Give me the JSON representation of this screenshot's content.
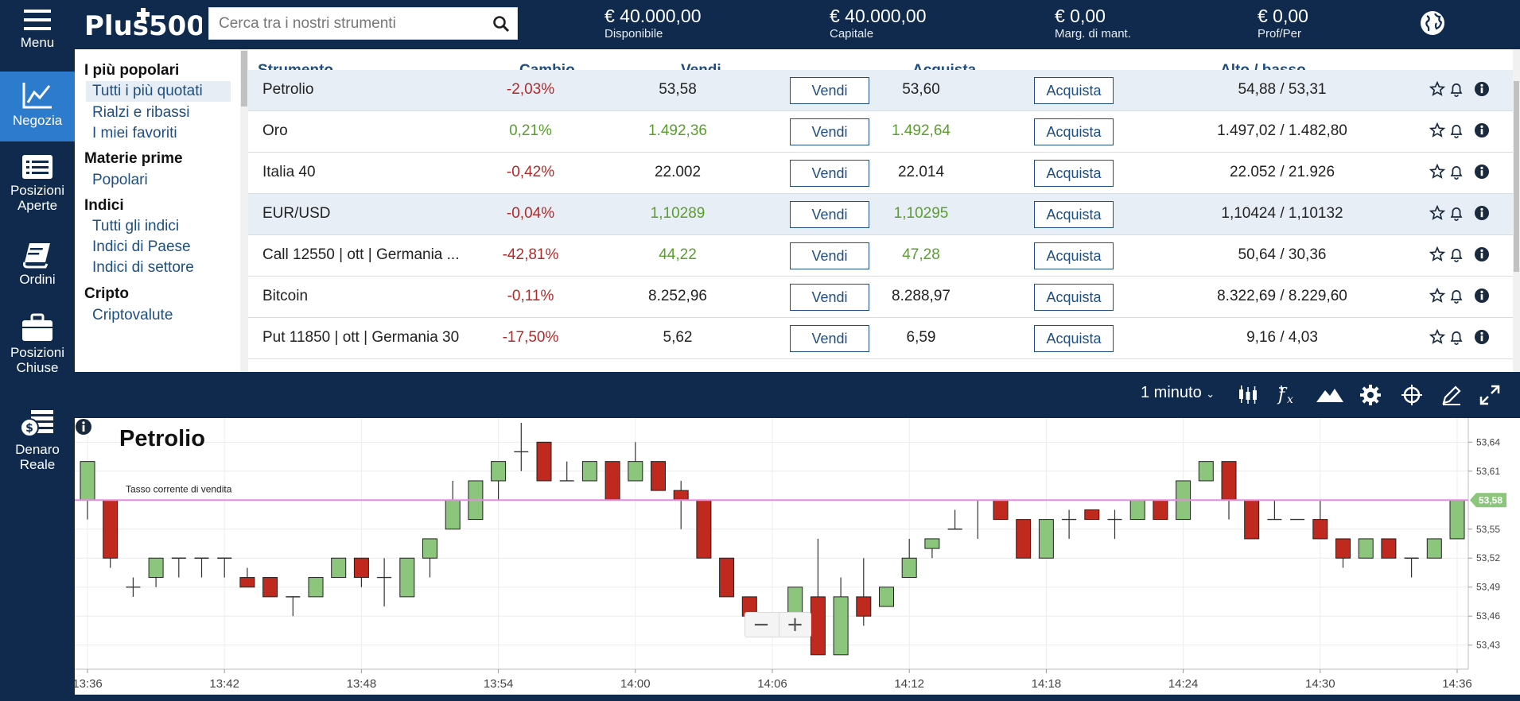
{
  "nav": [
    {
      "id": "menu",
      "label": "Menu",
      "icon": "hamburger-icon"
    },
    {
      "id": "trade",
      "label": "Negozia",
      "icon": "trade-chart-icon",
      "active": true
    },
    {
      "id": "open_positions",
      "label": "Posizioni Aperte",
      "icon": "positions-list-icon"
    },
    {
      "id": "orders",
      "label": "Ordini",
      "icon": "orders-book-icon"
    },
    {
      "id": "closed_positions",
      "label": "Posizioni Chiuse",
      "icon": "briefcase-icon"
    },
    {
      "id": "real_money",
      "label": "Denaro Reale",
      "icon": "money-stack-icon"
    }
  ],
  "header": {
    "logo_text": "Plus500",
    "search_placeholder": "Cerca tra i nostri strumenti",
    "stats": [
      {
        "value": "€ 40.000,00",
        "label": "Disponibile"
      },
      {
        "value": "€ 40.000,00",
        "label": "Capitale"
      },
      {
        "value": "€ 0,00",
        "label": "Marg. di mant."
      },
      {
        "value": "€ 0,00",
        "label": "Prof/Per"
      }
    ]
  },
  "categories": {
    "sections": [
      {
        "title": "I più popolari",
        "items": [
          "Tutti i più quotati",
          "Rialzi e ribassi",
          "I miei favoriti"
        ]
      },
      {
        "title": "Materie prime",
        "items": [
          "Popolari"
        ]
      },
      {
        "title": "Indici",
        "items": [
          "Tutti gli indici",
          "Indici di Paese",
          "Indici di settore"
        ]
      },
      {
        "title": "Cripto",
        "items": [
          "Criptovalute"
        ]
      }
    ],
    "selected": "Tutti i più quotati"
  },
  "table": {
    "headers": {
      "instrument": "Strumento",
      "change": "Cambio",
      "sell": "Vendi",
      "buy": "Acquista",
      "high_low": "Alto / basso"
    },
    "sell_button": "Vendi",
    "buy_button": "Acquista",
    "rows": [
      {
        "name": "Petrolio",
        "change": "-2,03%",
        "sell": "53,58",
        "buy": "53,60",
        "high_low": "54,88 / 53,31",
        "dir": "neg",
        "price_dir": "",
        "shaded": true
      },
      {
        "name": "Oro",
        "change": "0,21%",
        "sell": "1.492,36",
        "buy": "1.492,64",
        "high_low": "1.497,02 / 1.482,80",
        "dir": "pos",
        "price_dir": "pos",
        "shaded": false
      },
      {
        "name": "Italia 40",
        "change": "-0,42%",
        "sell": "22.002",
        "buy": "22.014",
        "high_low": "22.052 / 21.926",
        "dir": "neg",
        "price_dir": "",
        "shaded": false
      },
      {
        "name": "EUR/USD",
        "change": "-0,04%",
        "sell": "1,10289",
        "buy": "1,10295",
        "high_low": "1,10424 / 1,10132",
        "dir": "neg",
        "price_dir": "pos",
        "shaded": true
      },
      {
        "name": "Call 12550 | ott | Germania ...",
        "change": "-42,81%",
        "sell": "44,22",
        "buy": "47,28",
        "high_low": "50,64 / 30,36",
        "dir": "neg",
        "price_dir": "pos",
        "shaded": false
      },
      {
        "name": "Bitcoin",
        "change": "-0,11%",
        "sell": "8.252,96",
        "buy": "8.288,97",
        "high_low": "8.322,69 / 8.229,60",
        "dir": "neg",
        "price_dir": "",
        "shaded": false
      },
      {
        "name": "Put 11850 | ott | Germania 30",
        "change": "-17,50%",
        "sell": "5,62",
        "buy": "6,59",
        "high_low": "9,16 / 4,03",
        "dir": "neg",
        "price_dir": "",
        "shaded": false
      }
    ]
  },
  "chart_toolbar": {
    "interval": "1 minuto",
    "tools": [
      "candles-icon",
      "indicator-fx-icon",
      "area-chart-icon",
      "settings-gear-icon",
      "crosshair-icon",
      "pencil-icon",
      "fullscreen-icon"
    ]
  },
  "colors": {
    "navy": "#0f2a4d",
    "active_blue": "#2d7bcc",
    "up": "#8cc57c",
    "down": "#c0291e",
    "price_line": "#e58be0",
    "price_tag": "#8cc57c"
  },
  "chart_data": {
    "type": "candlestick",
    "title": "Petrolio",
    "annotation": "Tasso corrente di vendita",
    "current_price": 53.58,
    "current_price_label": "53,58",
    "ylim": [
      53.41,
      53.66
    ],
    "y_ticks": [
      53.43,
      53.46,
      53.49,
      53.52,
      53.55,
      53.61,
      53.64
    ],
    "y_tick_labels": [
      "53,43",
      "53,46",
      "53,49",
      "53,52",
      "53,55",
      "53,61",
      "53,64"
    ],
    "x_ticks": [
      "13:36",
      "13:42",
      "13:48",
      "13:54",
      "14:00",
      "14:06",
      "14:12",
      "14:18",
      "14:24",
      "14:30",
      "14:36"
    ],
    "x_tick_index": [
      0,
      6,
      12,
      18,
      24,
      30,
      36,
      42,
      48,
      54,
      60
    ],
    "candles": [
      {
        "o": 53.58,
        "h": 53.62,
        "l": 53.56,
        "c": 53.62
      },
      {
        "o": 53.58,
        "h": 53.58,
        "l": 53.51,
        "c": 53.52
      },
      {
        "o": 53.49,
        "h": 53.5,
        "l": 53.48,
        "c": 53.49
      },
      {
        "o": 53.5,
        "h": 53.52,
        "l": 53.49,
        "c": 53.52
      },
      {
        "o": 53.52,
        "h": 53.52,
        "l": 53.5,
        "c": 53.52
      },
      {
        "o": 53.52,
        "h": 53.52,
        "l": 53.5,
        "c": 53.52
      },
      {
        "o": 53.52,
        "h": 53.52,
        "l": 53.5,
        "c": 53.52
      },
      {
        "o": 53.5,
        "h": 53.51,
        "l": 53.49,
        "c": 53.49
      },
      {
        "o": 53.5,
        "h": 53.5,
        "l": 53.48,
        "c": 53.48
      },
      {
        "o": 53.48,
        "h": 53.48,
        "l": 53.46,
        "c": 53.48
      },
      {
        "o": 53.48,
        "h": 53.5,
        "l": 53.48,
        "c": 53.5
      },
      {
        "o": 53.5,
        "h": 53.52,
        "l": 53.5,
        "c": 53.52
      },
      {
        "o": 53.52,
        "h": 53.52,
        "l": 53.49,
        "c": 53.5
      },
      {
        "o": 53.5,
        "h": 53.52,
        "l": 53.47,
        "c": 53.5
      },
      {
        "o": 53.48,
        "h": 53.52,
        "l": 53.48,
        "c": 53.52
      },
      {
        "o": 53.52,
        "h": 53.54,
        "l": 53.5,
        "c": 53.54
      },
      {
        "o": 53.55,
        "h": 53.6,
        "l": 53.55,
        "c": 53.58
      },
      {
        "o": 53.56,
        "h": 53.6,
        "l": 53.56,
        "c": 53.6
      },
      {
        "o": 53.6,
        "h": 53.62,
        "l": 53.58,
        "c": 53.62
      },
      {
        "o": 53.63,
        "h": 53.66,
        "l": 53.61,
        "c": 53.63
      },
      {
        "o": 53.64,
        "h": 53.64,
        "l": 53.6,
        "c": 53.6
      },
      {
        "o": 53.6,
        "h": 53.62,
        "l": 53.6,
        "c": 53.6
      },
      {
        "o": 53.6,
        "h": 53.62,
        "l": 53.6,
        "c": 53.62
      },
      {
        "o": 53.62,
        "h": 53.62,
        "l": 53.58,
        "c": 53.58
      },
      {
        "o": 53.6,
        "h": 53.64,
        "l": 53.6,
        "c": 53.62
      },
      {
        "o": 53.62,
        "h": 53.62,
        "l": 53.59,
        "c": 53.59
      },
      {
        "o": 53.59,
        "h": 53.6,
        "l": 53.55,
        "c": 53.58
      },
      {
        "o": 53.58,
        "h": 53.58,
        "l": 53.52,
        "c": 53.52
      },
      {
        "o": 53.52,
        "h": 53.52,
        "l": 53.48,
        "c": 53.48
      },
      {
        "o": 53.48,
        "h": 53.48,
        "l": 53.46,
        "c": 53.46
      },
      {
        "o": 53.46,
        "h": 53.46,
        "l": 53.45,
        "c": 53.45
      },
      {
        "o": 53.46,
        "h": 53.49,
        "l": 53.46,
        "c": 53.49
      },
      {
        "o": 53.48,
        "h": 53.54,
        "l": 53.42,
        "c": 53.42
      },
      {
        "o": 53.42,
        "h": 53.5,
        "l": 53.42,
        "c": 53.48
      },
      {
        "o": 53.48,
        "h": 53.52,
        "l": 53.45,
        "c": 53.46
      },
      {
        "o": 53.47,
        "h": 53.49,
        "l": 53.47,
        "c": 53.49
      },
      {
        "o": 53.5,
        "h": 53.54,
        "l": 53.5,
        "c": 53.52
      },
      {
        "o": 53.53,
        "h": 53.54,
        "l": 53.52,
        "c": 53.54
      },
      {
        "o": 53.55,
        "h": 53.57,
        "l": 53.55,
        "c": 53.55
      },
      {
        "o": 53.58,
        "h": 53.58,
        "l": 53.54,
        "c": 53.58
      },
      {
        "o": 53.58,
        "h": 53.58,
        "l": 53.56,
        "c": 53.56
      },
      {
        "o": 53.56,
        "h": 53.56,
        "l": 53.52,
        "c": 53.52
      },
      {
        "o": 53.52,
        "h": 53.56,
        "l": 53.52,
        "c": 53.56
      },
      {
        "o": 53.56,
        "h": 53.57,
        "l": 53.54,
        "c": 53.56
      },
      {
        "o": 53.57,
        "h": 53.57,
        "l": 53.56,
        "c": 53.56
      },
      {
        "o": 53.56,
        "h": 53.57,
        "l": 53.54,
        "c": 53.56
      },
      {
        "o": 53.56,
        "h": 53.58,
        "l": 53.56,
        "c": 53.58
      },
      {
        "o": 53.58,
        "h": 53.58,
        "l": 53.56,
        "c": 53.56
      },
      {
        "o": 53.56,
        "h": 53.6,
        "l": 53.56,
        "c": 53.6
      },
      {
        "o": 53.6,
        "h": 53.62,
        "l": 53.6,
        "c": 53.62
      },
      {
        "o": 53.62,
        "h": 53.62,
        "l": 53.56,
        "c": 53.58
      },
      {
        "o": 53.58,
        "h": 53.58,
        "l": 53.54,
        "c": 53.54
      },
      {
        "o": 53.56,
        "h": 53.58,
        "l": 53.56,
        "c": 53.56
      },
      {
        "o": 53.56,
        "h": 53.56,
        "l": 53.56,
        "c": 53.56
      },
      {
        "o": 53.56,
        "h": 53.58,
        "l": 53.54,
        "c": 53.54
      },
      {
        "o": 53.54,
        "h": 53.54,
        "l": 53.51,
        "c": 53.52
      },
      {
        "o": 53.52,
        "h": 53.54,
        "l": 53.52,
        "c": 53.54
      },
      {
        "o": 53.54,
        "h": 53.54,
        "l": 53.52,
        "c": 53.52
      },
      {
        "o": 53.52,
        "h": 53.52,
        "l": 53.5,
        "c": 53.52
      },
      {
        "o": 53.52,
        "h": 53.54,
        "l": 53.52,
        "c": 53.54
      },
      {
        "o": 53.54,
        "h": 53.58,
        "l": 53.54,
        "c": 53.58
      }
    ],
    "grid": true,
    "legend": "none"
  }
}
